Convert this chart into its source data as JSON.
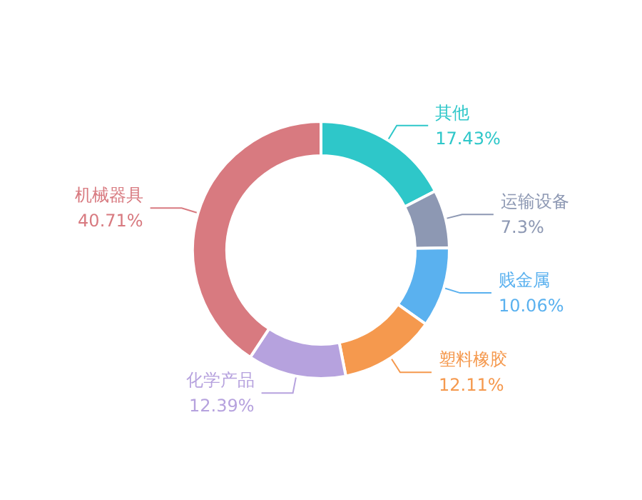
{
  "chart_data": {
    "type": "donut",
    "categories": [
      "其他",
      "运输设备",
      "贱金属",
      "塑料橡胶",
      "化学产品",
      "机械器具"
    ],
    "values": [
      17.43,
      7.3,
      10.06,
      12.11,
      12.39,
      40.71
    ],
    "value_labels": [
      "17.43%",
      "7.3%",
      "10.06%",
      "12.11%",
      "12.39%",
      "40.71%"
    ],
    "colors": [
      "#2ec7c9",
      "#8d98b3",
      "#5ab1ef",
      "#f5994e",
      "#b6a2de",
      "#d87a80"
    ],
    "legend": false
  }
}
